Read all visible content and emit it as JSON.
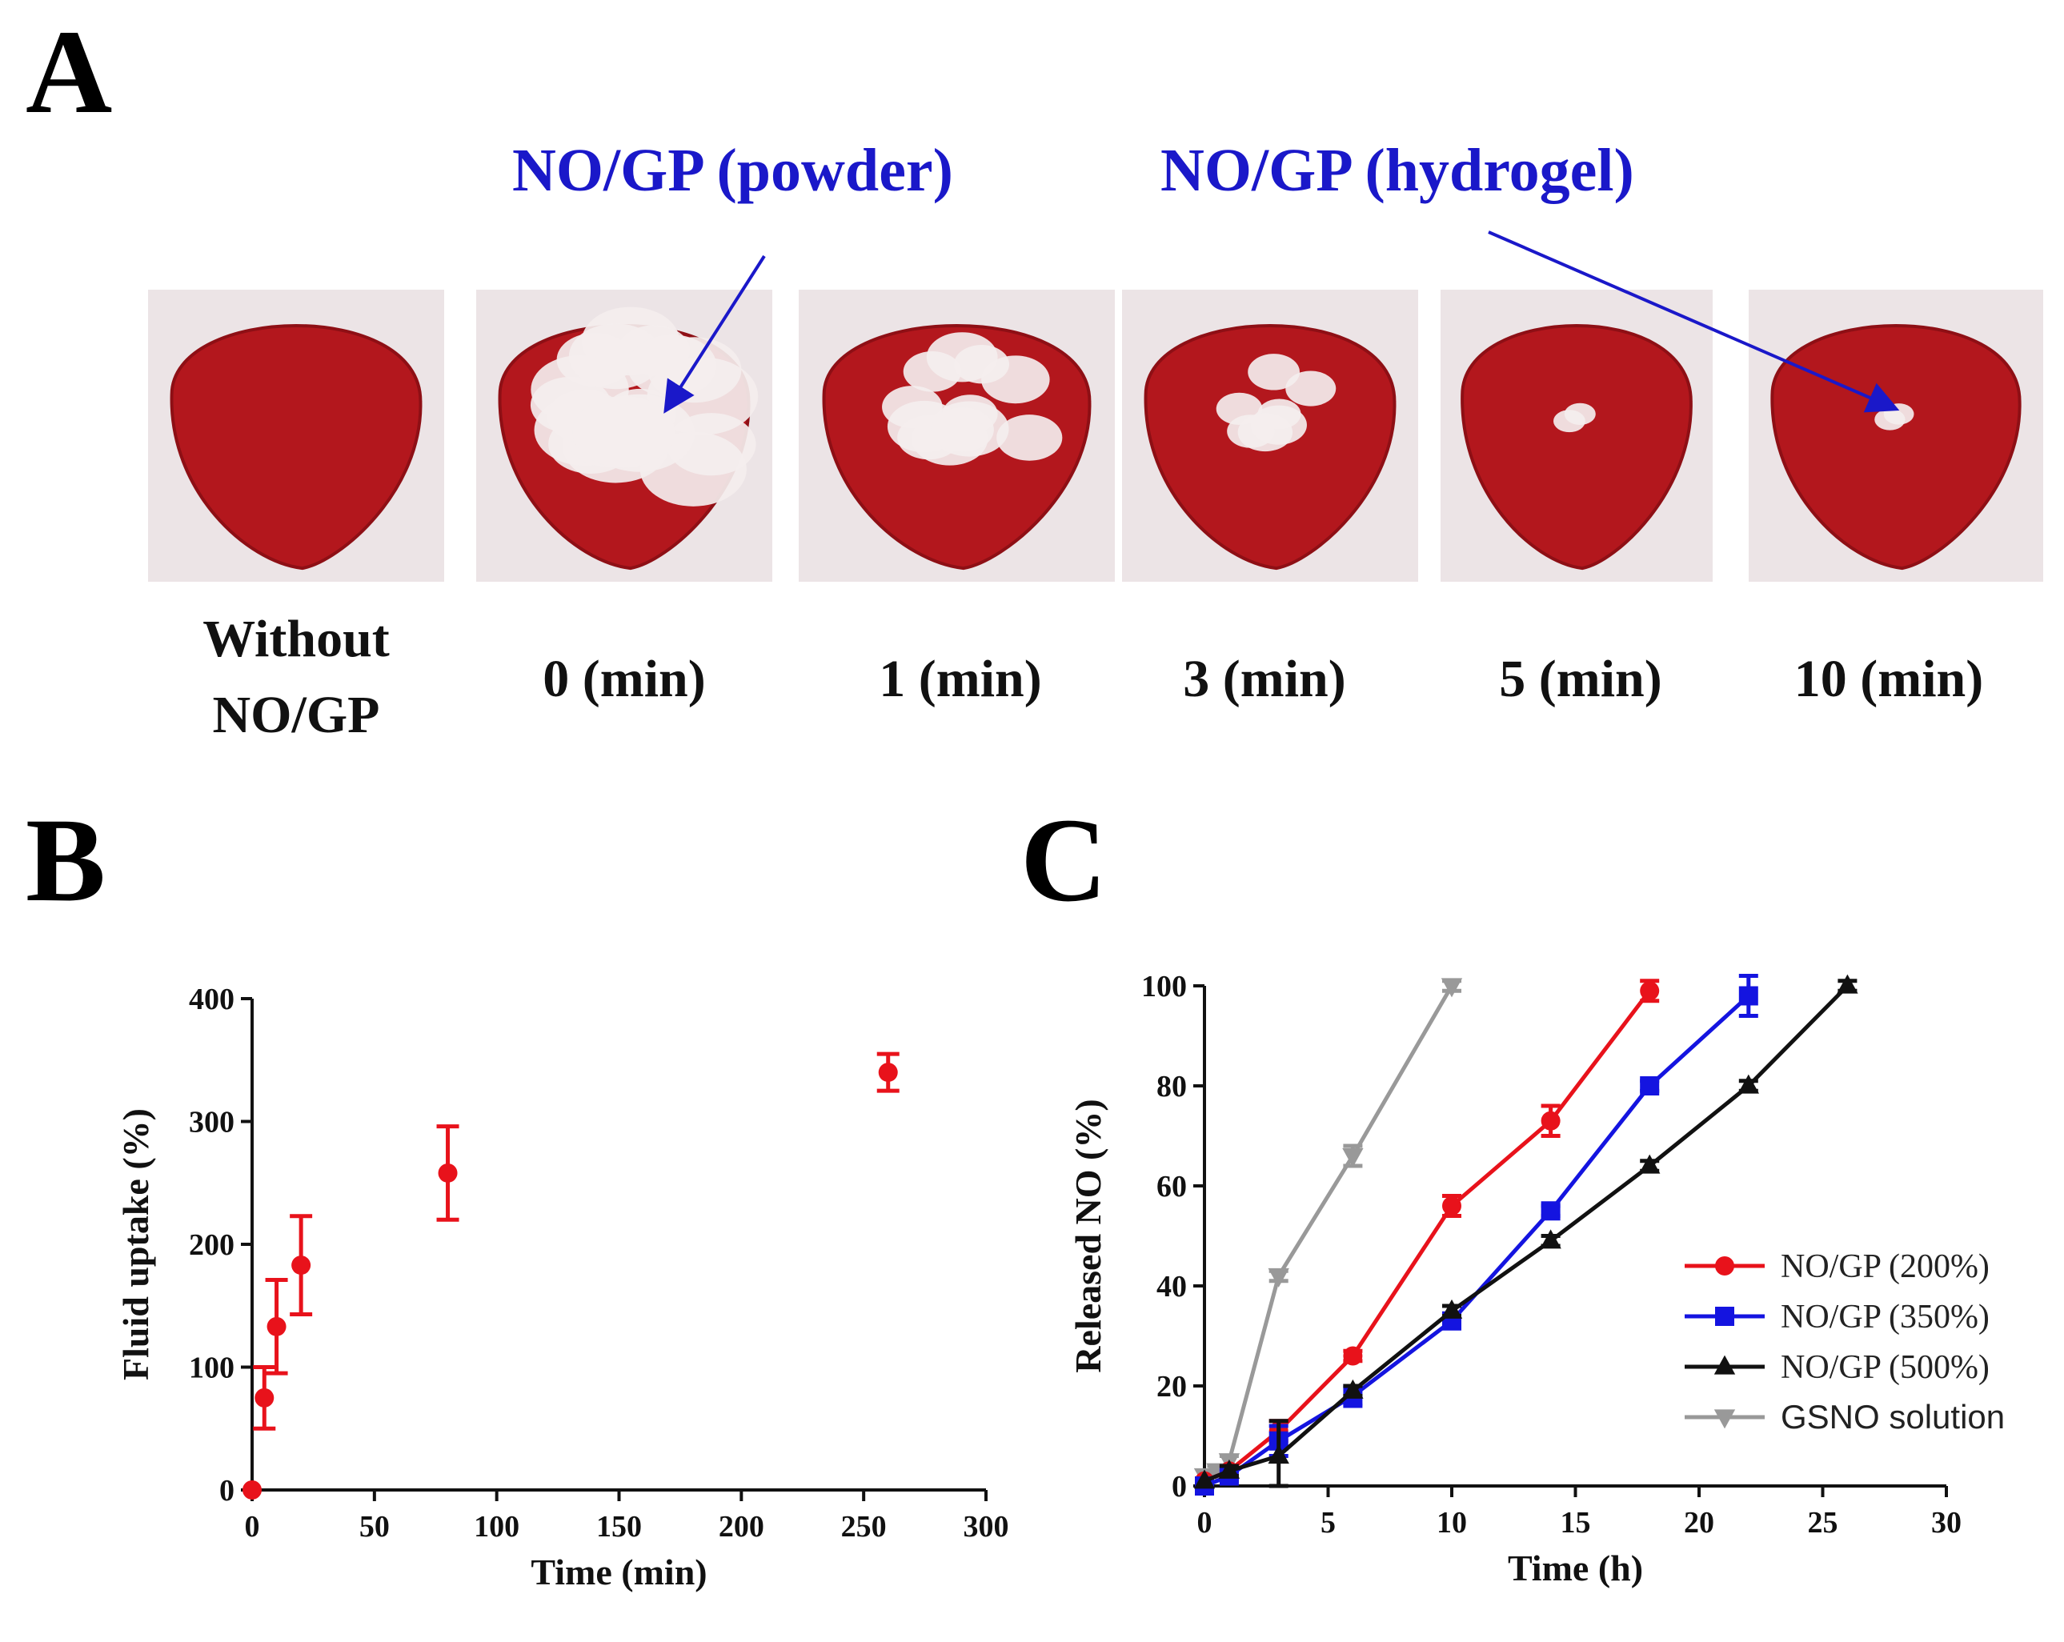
{
  "panels": {
    "a": {
      "letter": "A",
      "annotations": {
        "powder": "NO/GP (powder)",
        "hydrogel": "NO/GP (hydrogel)"
      },
      "photo_captions": [
        {
          "line1": "Without",
          "line2": "NO/GP"
        },
        {
          "line1": "0 (min)",
          "line2": ""
        },
        {
          "line1": "1 (min)",
          "line2": ""
        },
        {
          "line1": "3 (min)",
          "line2": ""
        },
        {
          "line1": "5 (min)",
          "line2": ""
        },
        {
          "line1": "10 (min)",
          "line2": ""
        }
      ],
      "photo_coverage": [
        0,
        0.9,
        0.55,
        0.3,
        0.05,
        0.03
      ]
    },
    "b": {
      "letter": "B"
    },
    "c": {
      "letter": "C"
    }
  },
  "colors": {
    "tissue": "#b3171d",
    "tissue_dark": "#8e0f15",
    "annotation_blue": "#1a18c9",
    "red": "#e8121b",
    "blue": "#1414e0",
    "black": "#111111",
    "gray": "#999999"
  },
  "chart_data": [
    {
      "type": "scatter",
      "title": "",
      "xlabel": "Time (min)",
      "ylabel": "Fluid uptake (%)",
      "xlim": [
        0,
        300
      ],
      "ylim": [
        0,
        400
      ],
      "xticks": [
        "0",
        "50",
        "100",
        "150",
        "200",
        "250",
        "300"
      ],
      "yticks": [
        "0",
        "100",
        "200",
        "300",
        "400"
      ],
      "series": [
        {
          "color": "#e8121b",
          "x": [
            0,
            5,
            10,
            20,
            80,
            260
          ],
          "y": [
            0,
            75,
            133,
            183,
            258,
            340
          ],
          "err": [
            0,
            25,
            38,
            40,
            38,
            15
          ]
        }
      ]
    },
    {
      "type": "line",
      "title": "",
      "xlabel": "Time (h)",
      "ylabel": "Released NO (%)",
      "xlim": [
        0,
        30
      ],
      "ylim": [
        0,
        100
      ],
      "xticks": [
        "0",
        "5",
        "10",
        "15",
        "20",
        "25",
        "30"
      ],
      "yticks": [
        "0",
        "20",
        "40",
        "60",
        "80",
        "100"
      ],
      "legend_position": "bottom-right",
      "series": [
        {
          "name": "NO/GP (200%)",
          "color": "#e8121b",
          "marker": "circle",
          "x": [
            0,
            1,
            3,
            6,
            10,
            14,
            18
          ],
          "y": [
            1,
            3,
            11,
            26,
            56,
            73,
            99
          ],
          "err": [
            0,
            1,
            2,
            1,
            2,
            3,
            2
          ]
        },
        {
          "name": "NO/GP (350%)",
          "color": "#1414e0",
          "marker": "square",
          "x": [
            0,
            1,
            3,
            6,
            10,
            14,
            18,
            22
          ],
          "y": [
            0,
            2,
            9,
            18,
            33,
            55,
            80,
            98
          ],
          "err": [
            0,
            1,
            3,
            2,
            1,
            1,
            1,
            4
          ]
        },
        {
          "name": "NO/GP (500%)",
          "color": "#111111",
          "marker": "triangle",
          "x": [
            0,
            1,
            3,
            6,
            10,
            14,
            18,
            22,
            26
          ],
          "y": [
            1,
            3,
            6,
            19,
            35,
            49,
            64,
            80,
            100
          ],
          "err": [
            0,
            1,
            7,
            1,
            1,
            1,
            1,
            1,
            1
          ]
        },
        {
          "name": "GSNO solution",
          "color": "#999999",
          "marker": "triangle-down",
          "x": [
            0,
            0.5,
            1,
            3,
            6,
            10
          ],
          "y": [
            2,
            3,
            5,
            42,
            66,
            100
          ],
          "err": [
            0,
            1,
            1,
            1,
            2,
            1
          ]
        }
      ]
    }
  ]
}
